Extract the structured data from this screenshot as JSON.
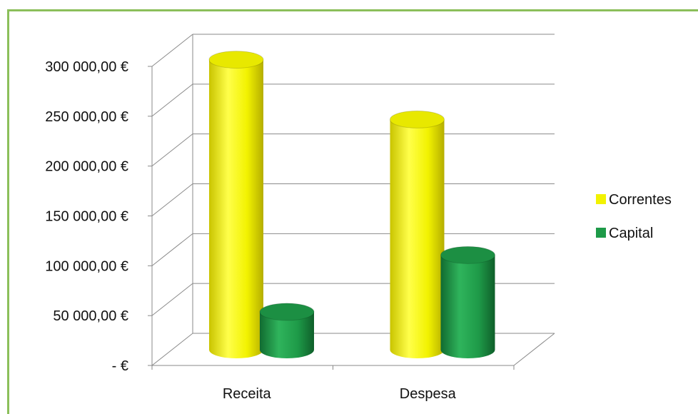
{
  "chart_data": {
    "type": "bar",
    "style": "3d-cylinder",
    "categories": [
      "Receita",
      "Despesa"
    ],
    "series": [
      {
        "name": "Correntes",
        "color": "#f2f200",
        "values": [
          291000,
          231000
        ]
      },
      {
        "name": "Capital",
        "color": "#1e9a48",
        "values": [
          38000,
          95000
        ]
      }
    ],
    "ylim": [
      0,
      300000
    ],
    "yticks": [
      0,
      50000,
      100000,
      150000,
      200000,
      250000,
      300000
    ],
    "ytick_labels": [
      "-  €",
      "50 000,00 €",
      "100 000,00 €",
      "150 000,00 €",
      "200 000,00 €",
      "250 000,00 €",
      "300 000,00 €"
    ],
    "grid": true,
    "legend_position": "right"
  }
}
